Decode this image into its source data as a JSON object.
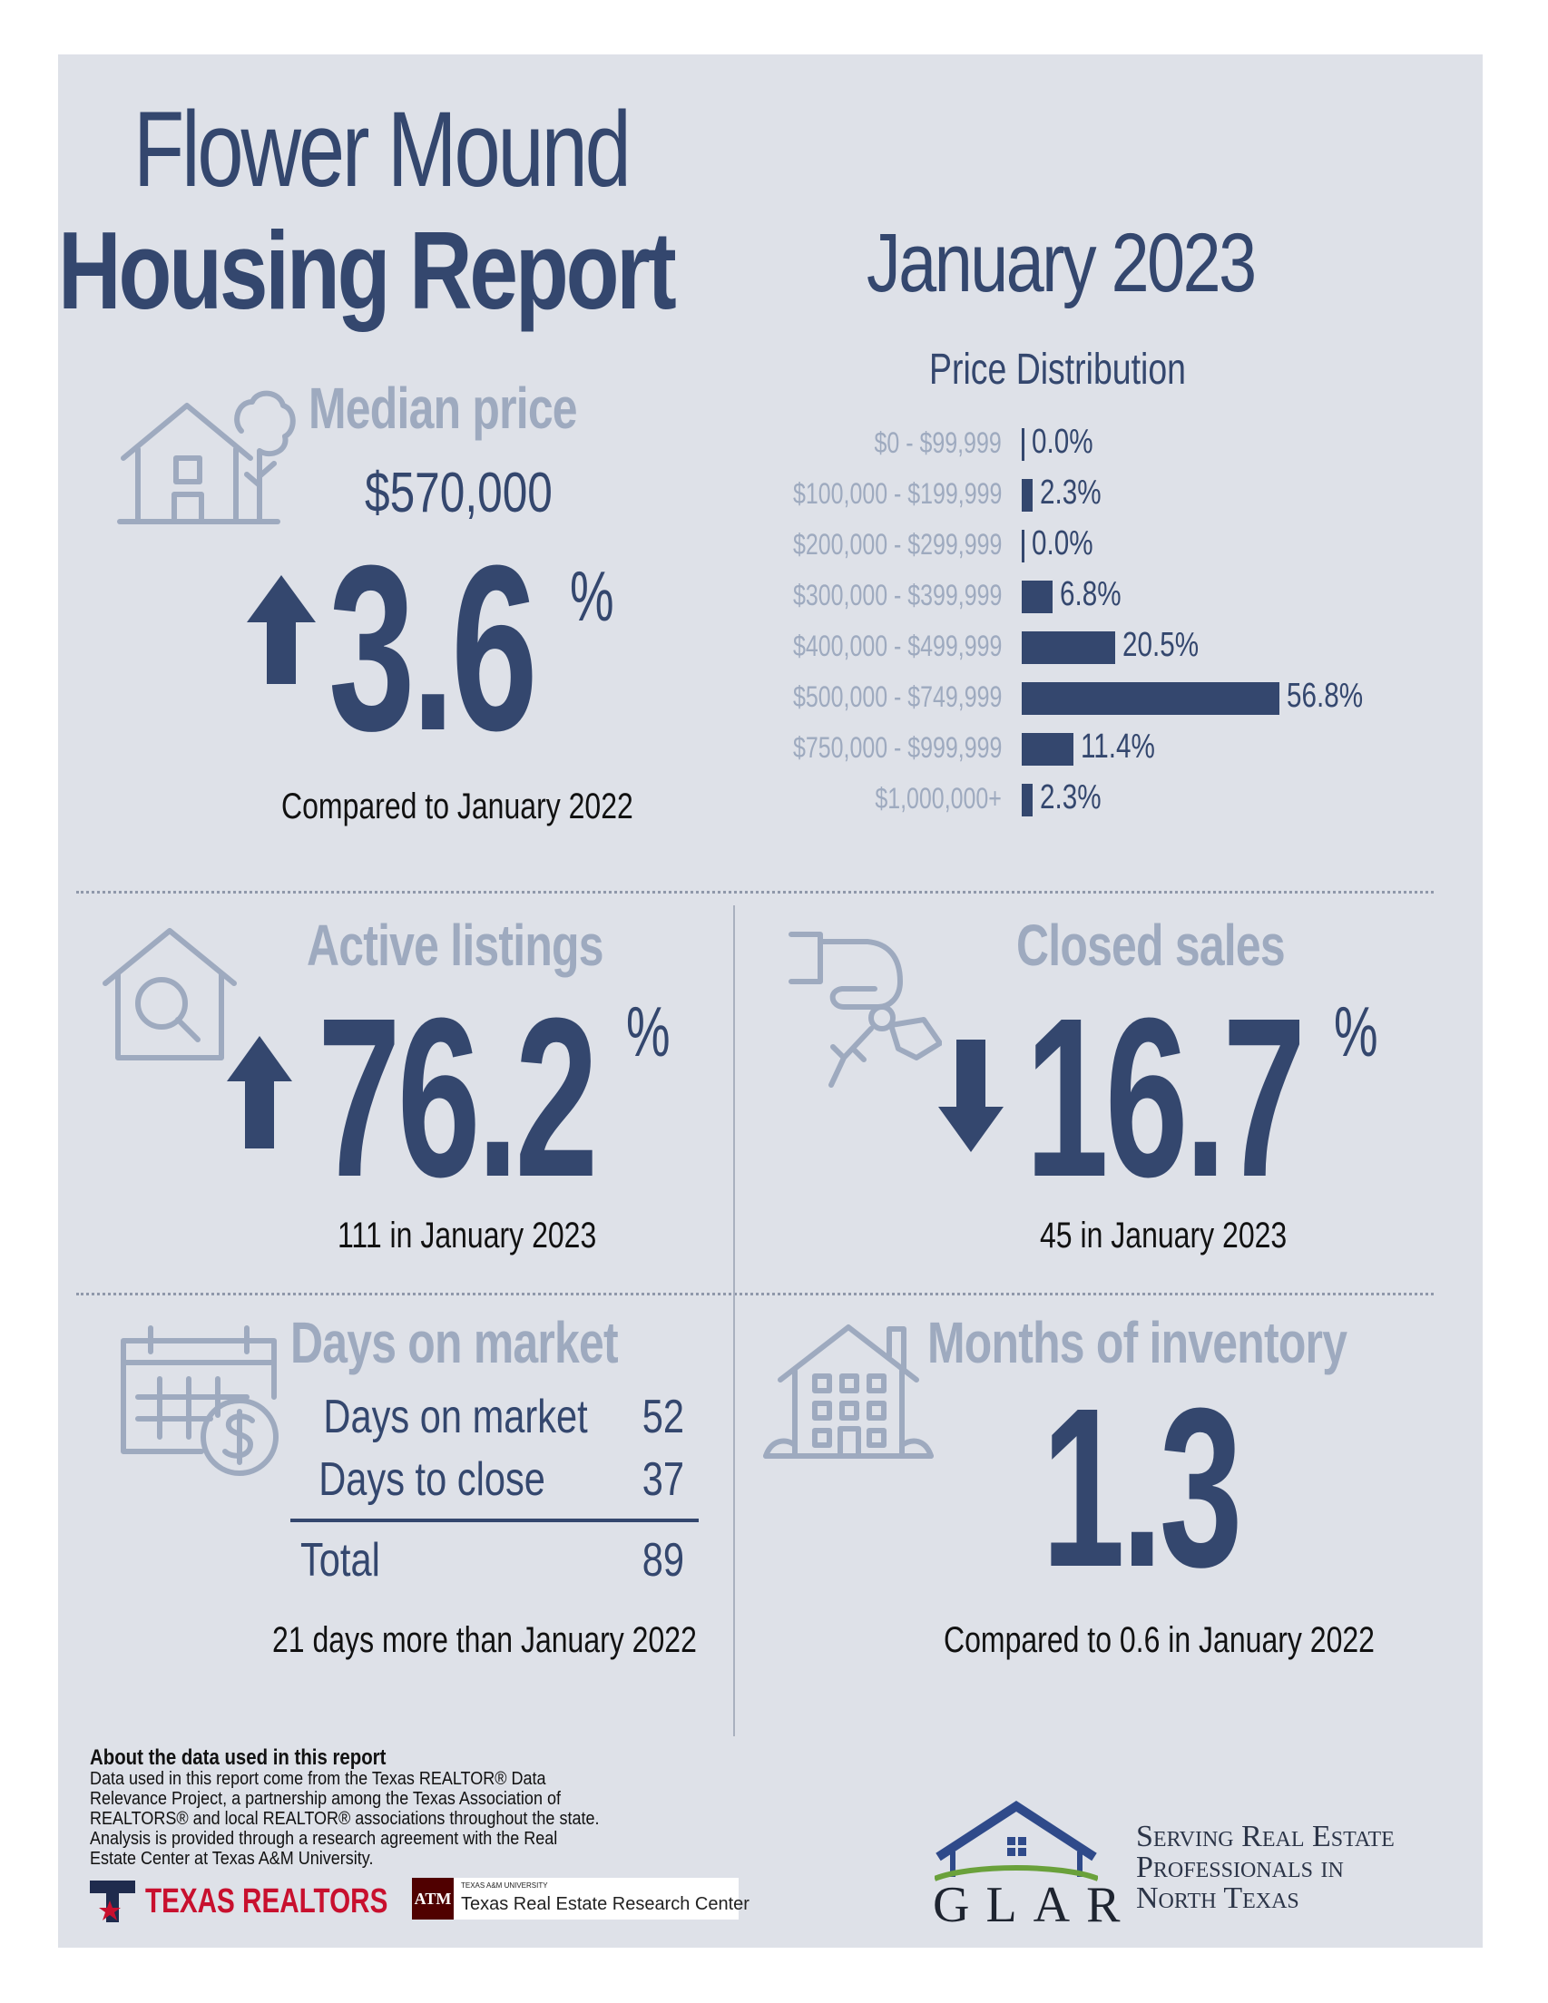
{
  "title": {
    "line1": "Flower Mound",
    "line2": "Housing Report",
    "period": "January 2023"
  },
  "colors": {
    "navy": "#34476e",
    "light": "#9eaabf",
    "panel": "#dee1e8"
  },
  "median_price": {
    "header": "Median price",
    "value": "$570,000",
    "change": "3.6",
    "percent_sign": "%",
    "direction": "up",
    "caption": "Compared to January 2022",
    "icon": "house-tree-icon"
  },
  "chart_data": {
    "type": "bar",
    "title": "Price Distribution",
    "orientation": "horizontal",
    "categories": [
      "$0 - $99,999",
      "$100,000 - $199,999",
      "$200,000 - $299,999",
      "$300,000 - $399,999",
      "$400,000 - $499,999",
      "$500,000 - $749,999",
      "$750,000 - $999,999",
      "$1,000,000+"
    ],
    "values": [
      0.0,
      2.3,
      0.0,
      6.8,
      20.5,
      56.8,
      11.4,
      2.3
    ],
    "value_labels": [
      "0.0%",
      "2.3%",
      "0.0%",
      "6.8%",
      "20.5%",
      "56.8%",
      "11.4%",
      "2.3%"
    ],
    "xlim": [
      0,
      56.8
    ],
    "grid": false
  },
  "active_listings": {
    "header": "Active listings",
    "change": "76.2",
    "percent_sign": "%",
    "direction": "up",
    "caption": "111 in January 2023",
    "icon": "house-search-icon"
  },
  "closed_sales": {
    "header": "Closed sales",
    "change": "16.7",
    "percent_sign": "%",
    "direction": "down",
    "caption": "45 in January 2023",
    "icon": "hand-keys-icon"
  },
  "days_on_market": {
    "header": "Days on market",
    "rows": [
      {
        "label": "Days on market",
        "value": "52"
      },
      {
        "label": "Days to close",
        "value": "37"
      }
    ],
    "total": {
      "label": "Total",
      "value": "89"
    },
    "caption": "21 days more than January 2022",
    "icon": "calendar-dollar-icon"
  },
  "months_inventory": {
    "header": "Months of inventory",
    "value": "1.3",
    "caption": "Compared to 0.6 in January 2022",
    "icon": "apartment-house-icon"
  },
  "footer": {
    "about_title": "About the data used in this report",
    "about_text": "Data used in this report come from the Texas REALTOR® Data Relevance Project, a partnership among the Texas Association of REALTORS® and local REALTOR® associations throughout the state. Analysis is provided through a research agreement with the Real Estate Center at Texas A&M University.",
    "texas_realtors": "TEXAS REALTORS",
    "tamu_small": "TEXAS A&M UNIVERSITY",
    "tamu_center": "Texas Real Estate Research Center",
    "tamu_mark": "ATM",
    "glar": "GLAR",
    "glar_tagline": "Serving Real Estate\nProfessionals in\nNorth Texas"
  }
}
